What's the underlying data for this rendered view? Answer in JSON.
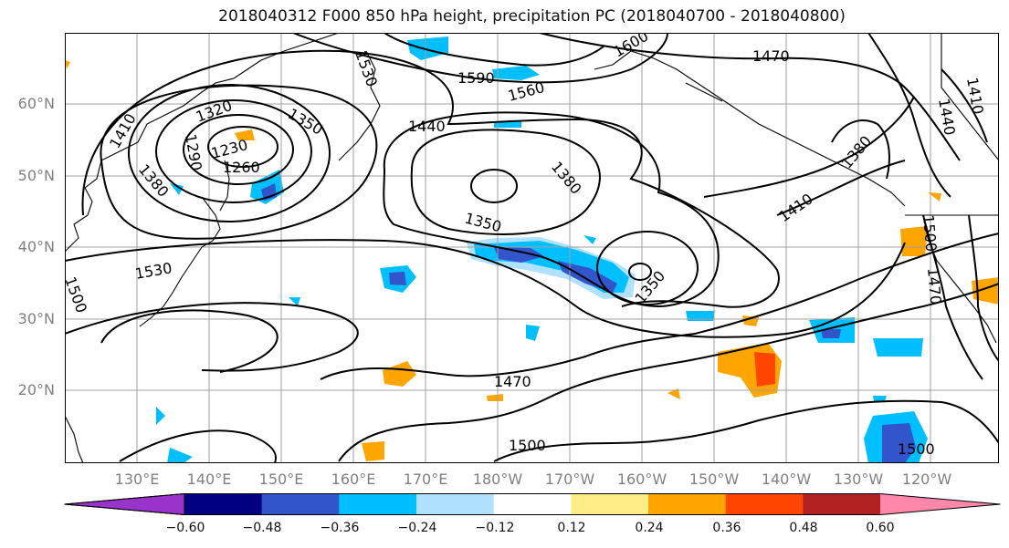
{
  "title": "2018040312 F000 850 hPa height, precipitation PC (2018040700 - 2018040800)",
  "lat_labels": [
    "60°N",
    "50°N",
    "40°N",
    "30°N",
    "20°N"
  ],
  "lon_labels": [
    "130°E",
    "140°E",
    "150°E",
    "160°E",
    "170°E",
    "180°W",
    "170°W",
    "160°W",
    "150°W",
    "140°W",
    "130°W",
    "120°W"
  ],
  "contour_labels": [
    "1530",
    "1590",
    "1560",
    "1600",
    "1470",
    "1440",
    "1410",
    "1410",
    "1320",
    "1350",
    "1290",
    "1230",
    "1260",
    "1380",
    "1440",
    "1380",
    "1350",
    "1410",
    "1350",
    "1380",
    "1530",
    "1500",
    "1470",
    "1500",
    "1500",
    "1470",
    "1500"
  ],
  "colorbar": {
    "ticks": [
      "−0.60",
      "−0.48",
      "−0.36",
      "−0.24",
      "−0.12",
      "0.12",
      "0.24",
      "0.36",
      "0.48",
      "0.60"
    ],
    "colors": [
      "#9933cc",
      "#000080",
      "#3355cc",
      "#00bfff",
      "#b0e2ff",
      "#ffffff",
      "#ffee88",
      "#ffa500",
      "#ff4500",
      "#b22222",
      "#ff88aa"
    ]
  }
}
